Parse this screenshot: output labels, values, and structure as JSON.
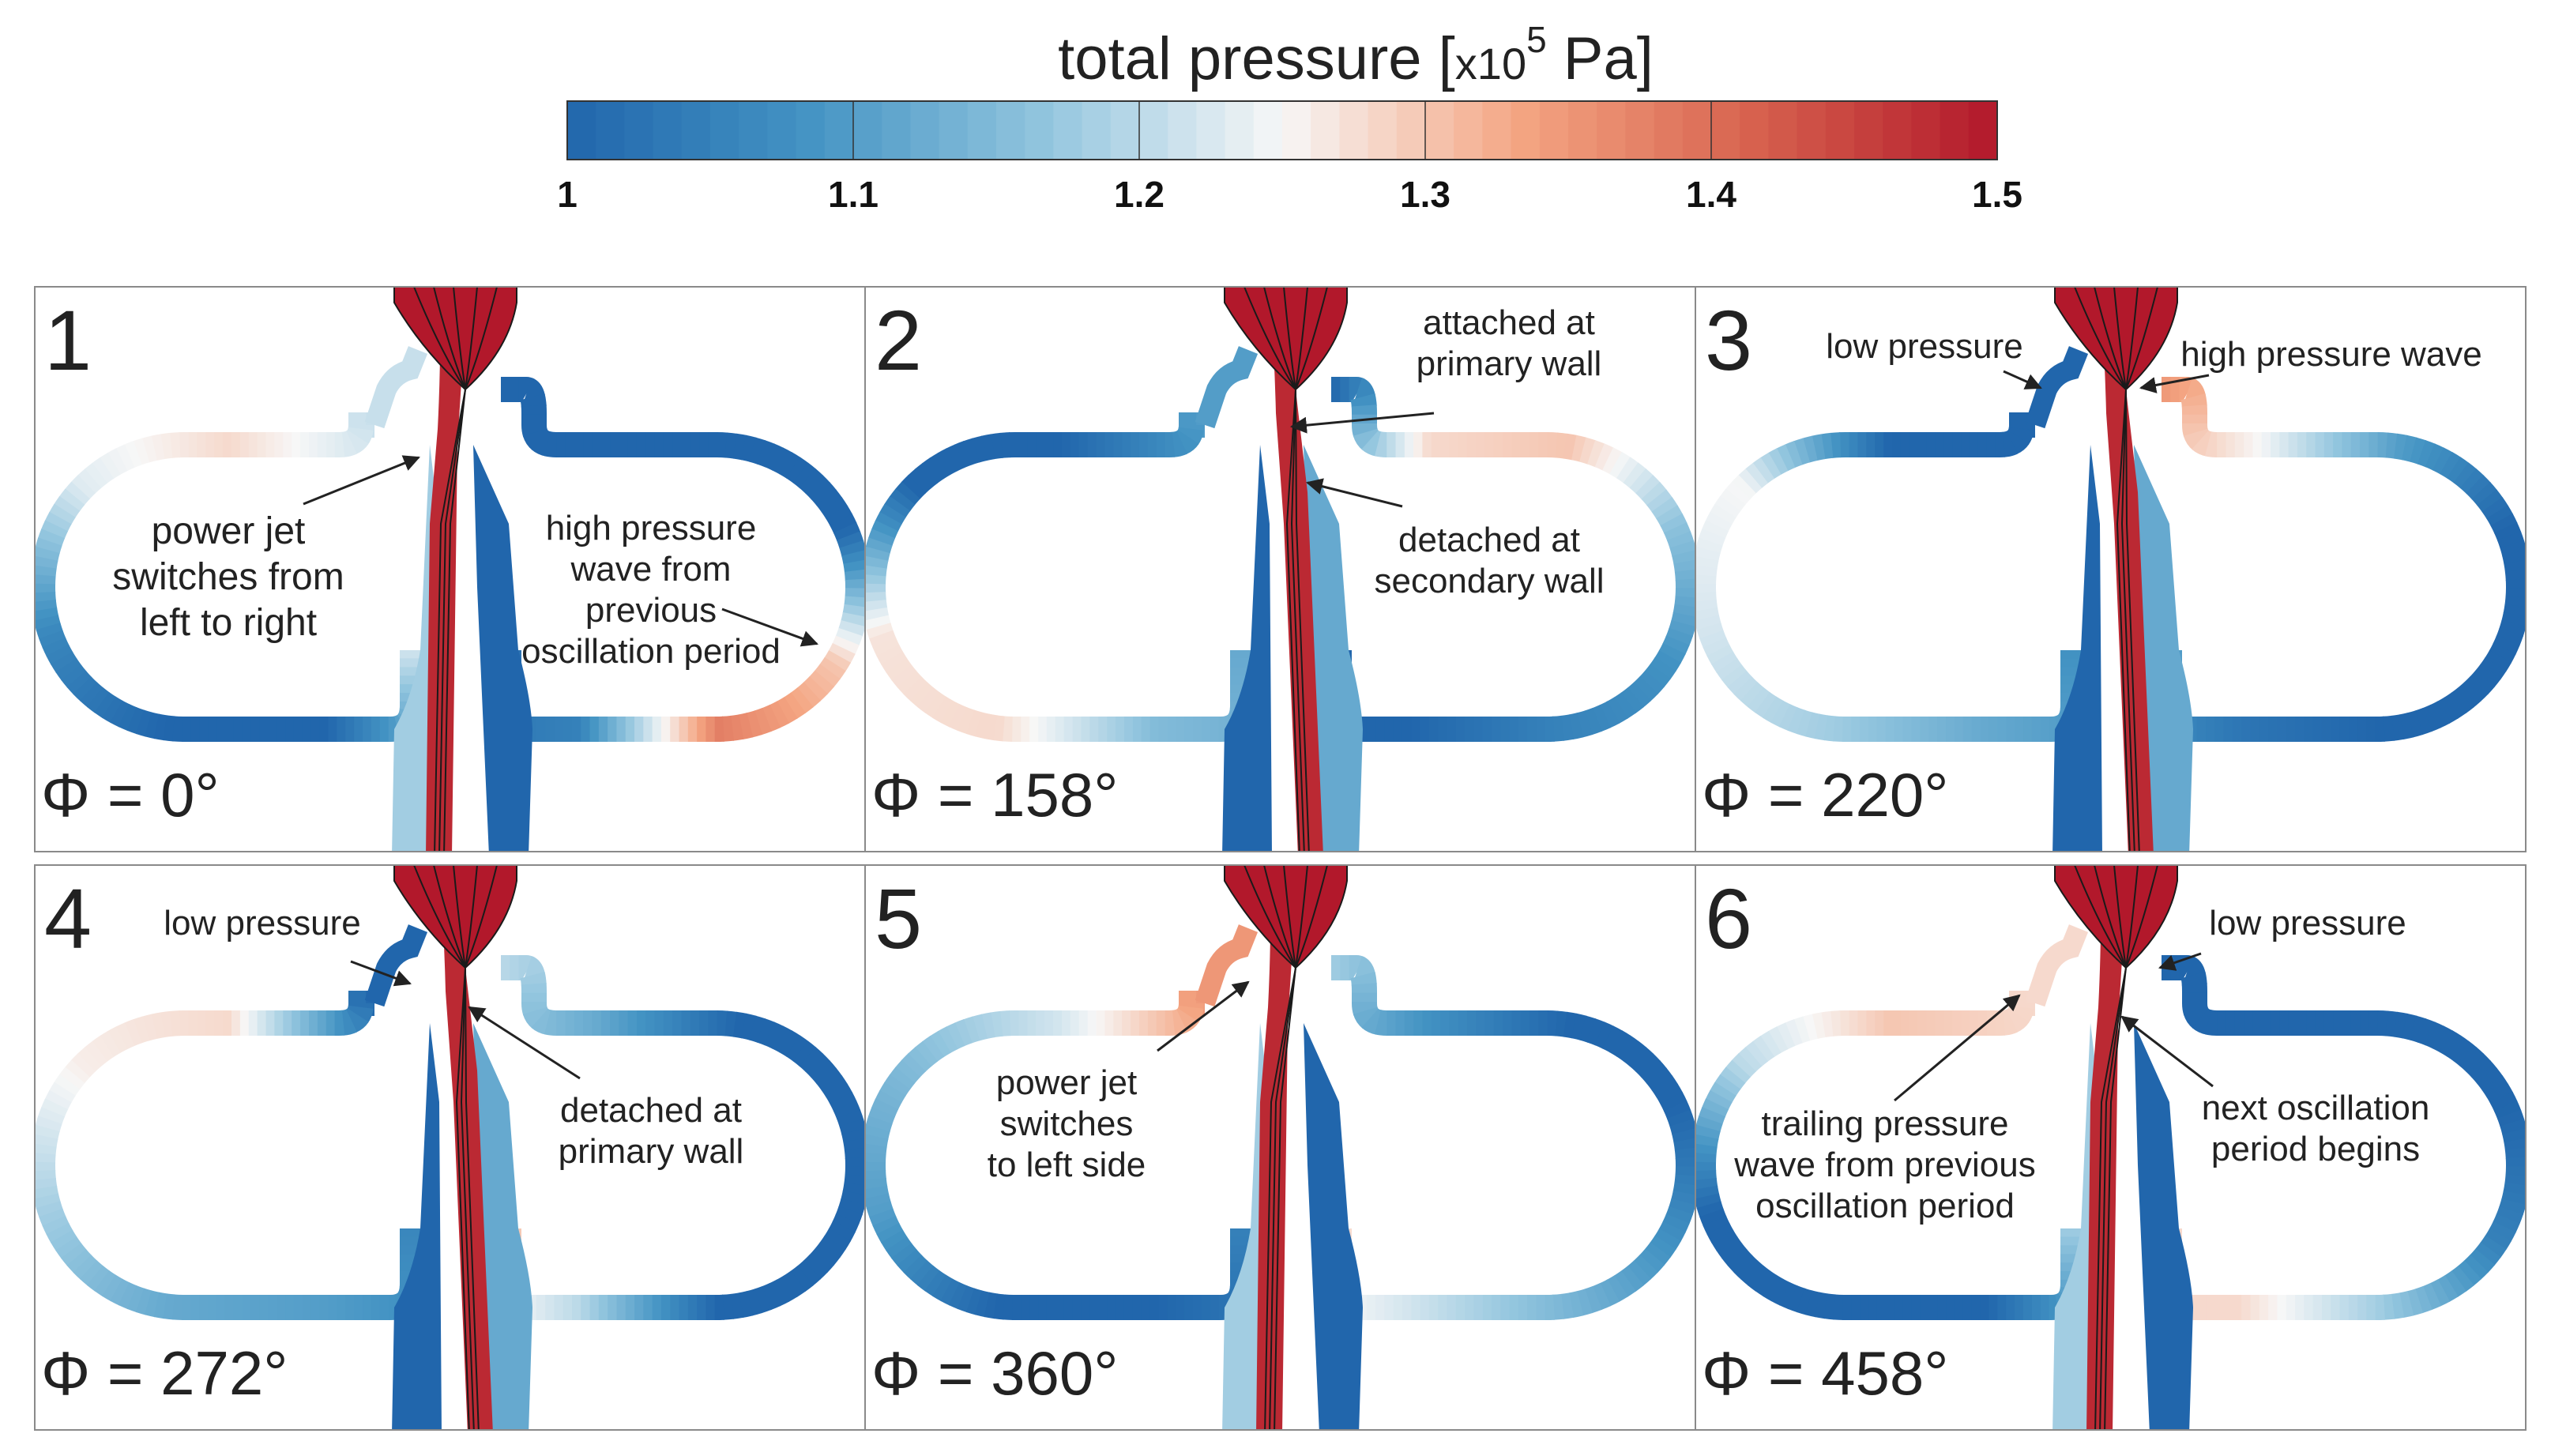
{
  "colorbar": {
    "title_main": "total pressure [",
    "title_x": "x10",
    "title_exp": "5",
    "title_unit": " Pa]",
    "ticks": [
      "1",
      "1.1",
      "1.2",
      "1.3",
      "1.4",
      "1.5"
    ],
    "min": 1.0,
    "max": 1.5,
    "colors": [
      "#2166ac",
      "#4393c3",
      "#92c5de",
      "#f7f7f7",
      "#f4a582",
      "#d6604d",
      "#b2182b"
    ]
  },
  "panels": [
    {
      "number": "1",
      "phase": "Φ = 0°",
      "jet_side": "left",
      "left_loop_pressure": [
        1.21,
        1.28,
        1.23,
        1.06,
        1.0,
        1.0,
        1.22
      ],
      "right_loop_pressure": [
        1.0,
        1.0,
        1.0,
        1.0,
        1.3,
        1.38,
        1.05,
        1.02
      ],
      "annotations": [
        {
          "lines": [
            "power jet",
            "switches from",
            "left to right"
          ]
        },
        {
          "lines": [
            "high pressure",
            "wave from",
            "previous",
            "oscillation period"
          ]
        }
      ]
    },
    {
      "number": "2",
      "phase": "Φ = 158°",
      "jet_side": "right",
      "left_loop_pressure": [
        1.1,
        1.0,
        1.0,
        1.27,
        1.28,
        1.15,
        1.12
      ],
      "right_loop_pressure": [
        1.0,
        1.28,
        1.3,
        1.16,
        1.08,
        1.05,
        1.0,
        1.0
      ],
      "annotations": [
        {
          "lines": [
            "attached at",
            "primary wall"
          ]
        },
        {
          "lines": [
            "detached at",
            "secondary wall"
          ]
        }
      ]
    },
    {
      "number": "3",
      "phase": "Φ = 220°",
      "jet_side": "right",
      "left_loop_pressure": [
        1.0,
        1.0,
        1.25,
        1.22,
        1.18,
        1.12,
        1.08
      ],
      "right_loop_pressure": [
        1.35,
        1.25,
        1.1,
        1.0,
        1.0,
        1.0,
        1.03,
        1.1
      ],
      "annotations": [
        {
          "lines": [
            "low pressure"
          ]
        },
        {
          "lines": [
            "high pressure wave"
          ]
        }
      ]
    },
    {
      "number": "4",
      "phase": "Φ = 272°",
      "jet_side": "right",
      "left_loop_pressure": [
        1.0,
        1.28,
        1.26,
        1.18,
        1.12,
        1.1,
        1.06
      ],
      "right_loop_pressure": [
        1.2,
        1.12,
        1.0,
        1.0,
        1.0,
        1.0,
        1.2,
        1.3
      ],
      "annotations": [
        {
          "lines": [
            "low pressure"
          ]
        },
        {
          "lines": [
            "detached at",
            "primary wall"
          ]
        }
      ]
    },
    {
      "number": "5",
      "phase": "Φ = 360°",
      "jet_side": "left",
      "left_loop_pressure": [
        1.35,
        1.22,
        1.15,
        1.1,
        1.0,
        1.0,
        1.05
      ],
      "right_loop_pressure": [
        1.18,
        1.08,
        1.0,
        1.0,
        1.08,
        1.15,
        1.22,
        1.28
      ],
      "annotations": [
        {
          "lines": [
            "power jet",
            "switches",
            "to left side"
          ]
        }
      ]
    },
    {
      "number": "6",
      "phase": "Φ = 458°",
      "jet_side": "left",
      "left_loop_pressure": [
        1.28,
        1.3,
        1.2,
        1.0,
        1.0,
        1.0,
        1.18
      ],
      "right_loop_pressure": [
        1.0,
        1.0,
        1.0,
        1.0,
        1.05,
        1.18,
        1.28,
        1.28
      ],
      "annotations": [
        {
          "lines": [
            "trailing pressure",
            "wave from previous",
            "oscillation period"
          ]
        },
        {
          "lines": [
            "next oscillation",
            "period begins"
          ]
        },
        {
          "lines": [
            "low pressure"
          ]
        }
      ]
    }
  ]
}
